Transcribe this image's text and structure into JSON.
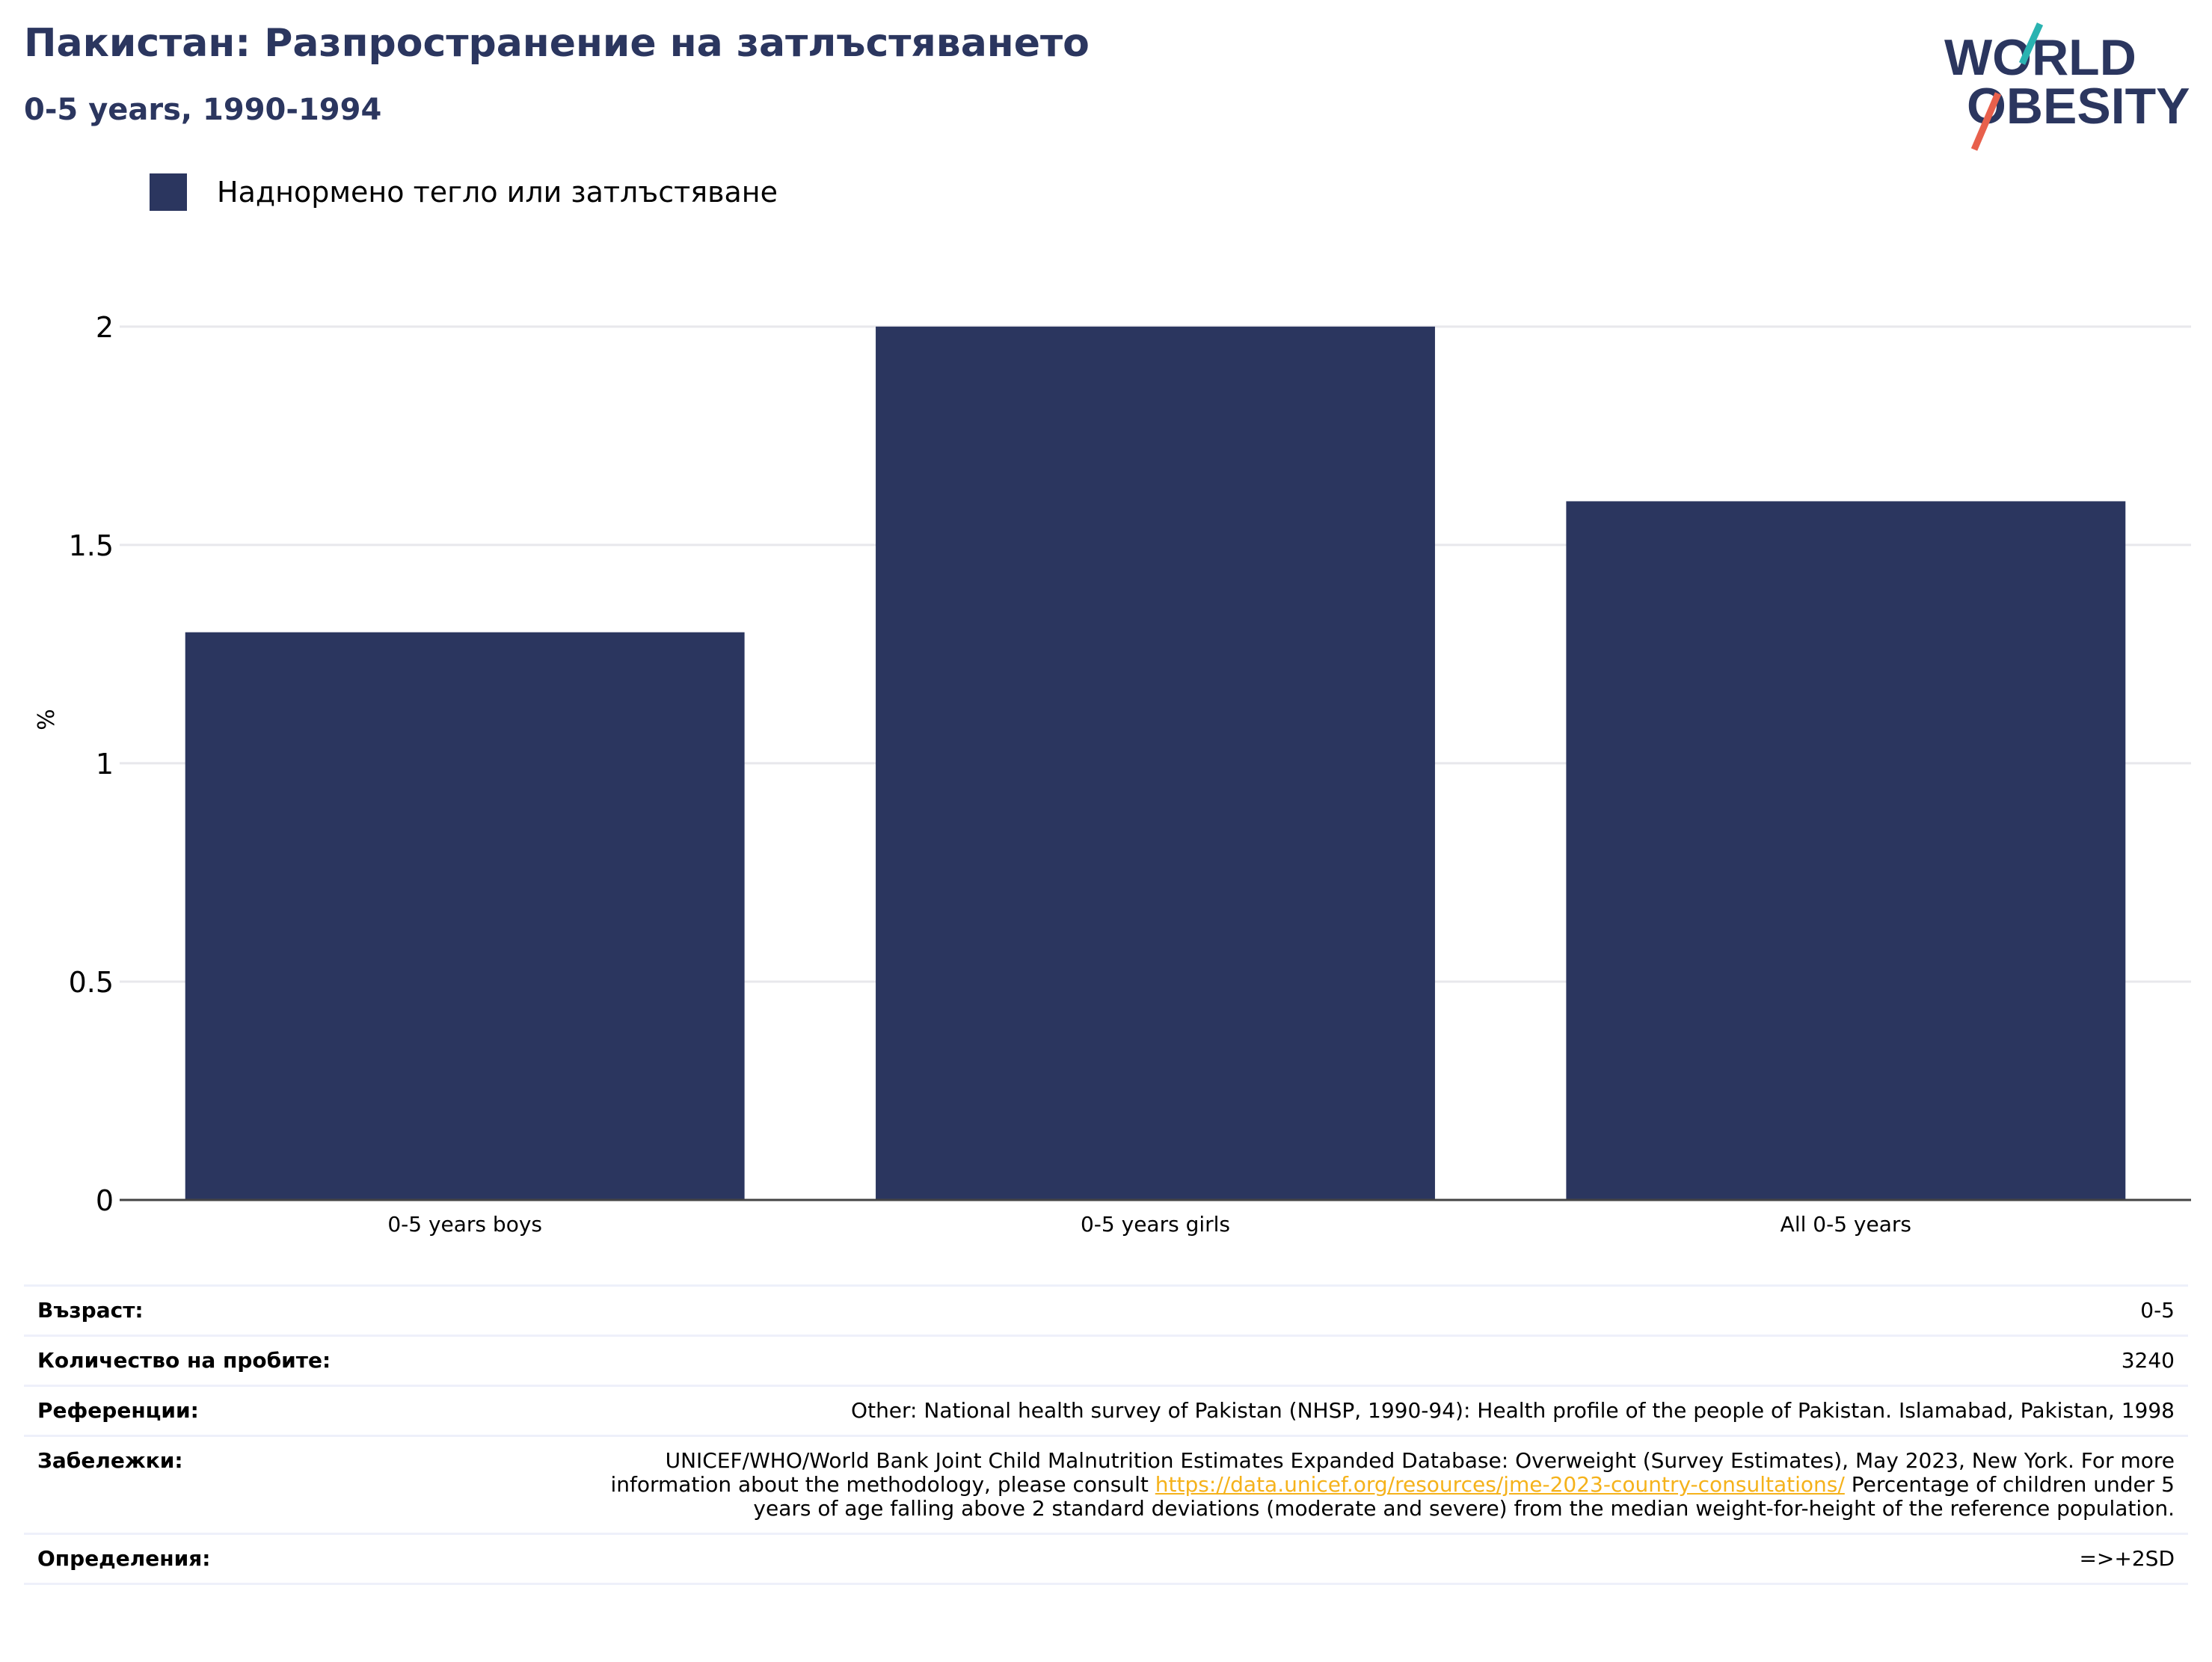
{
  "header": {
    "title": "Пакистан: Разпространение на затлъстяването",
    "subtitle": "0-5 years, 1990-1994"
  },
  "logo": {
    "line1": "WORLD",
    "line2": "OBESITY"
  },
  "chart_data": {
    "type": "bar",
    "categories": [
      "0-5 years boys",
      "0-5 years girls",
      "All 0-5 years"
    ],
    "series": [
      {
        "name": "Наднормено тегло или затлъстяване",
        "values": [
          1.3,
          2.0,
          1.6
        ],
        "color": "#2b365f"
      }
    ],
    "ylabel": "%",
    "xlabel": "",
    "ylim": [
      0,
      2.2
    ],
    "yticks": [
      0,
      0.5,
      1,
      1.5,
      2
    ],
    "ytick_labels": [
      "0",
      "0.5",
      "1",
      "1.5",
      "2"
    ],
    "grid": true,
    "legend_position": "top-left"
  },
  "meta": {
    "age_label": "Възраст:",
    "age_value": "0-5",
    "sample_label": "Количество на пробите:",
    "sample_value": "3240",
    "references_label": "Референции:",
    "references_value": "Other: National health survey of Pakistan (NHSP, 1990-94): Health profile of the people of Pakistan. Islamabad, Pakistan, 1998",
    "notes_label": "Забележки:",
    "notes_before": "UNICEF/WHO/World Bank Joint Child Malnutrition Estimates Expanded Database: Overweight (Survey Estimates), May 2023, New York. For more information about the methodology, please consult ",
    "notes_link": "https://data.unicef.org/resources/jme-2023-country-consultations/",
    "notes_after": " Percentage of children under 5 years of age falling above 2 standard deviations (moderate and severe) from the median weight-for-height of the reference population.",
    "definitions_label": "Определения:",
    "definitions_value": "=>+2SD"
  },
  "colors": {
    "brand": "#2b365f",
    "accent_teal": "#2ab3b1",
    "accent_red": "#e8604c",
    "link": "#f5b21b"
  }
}
